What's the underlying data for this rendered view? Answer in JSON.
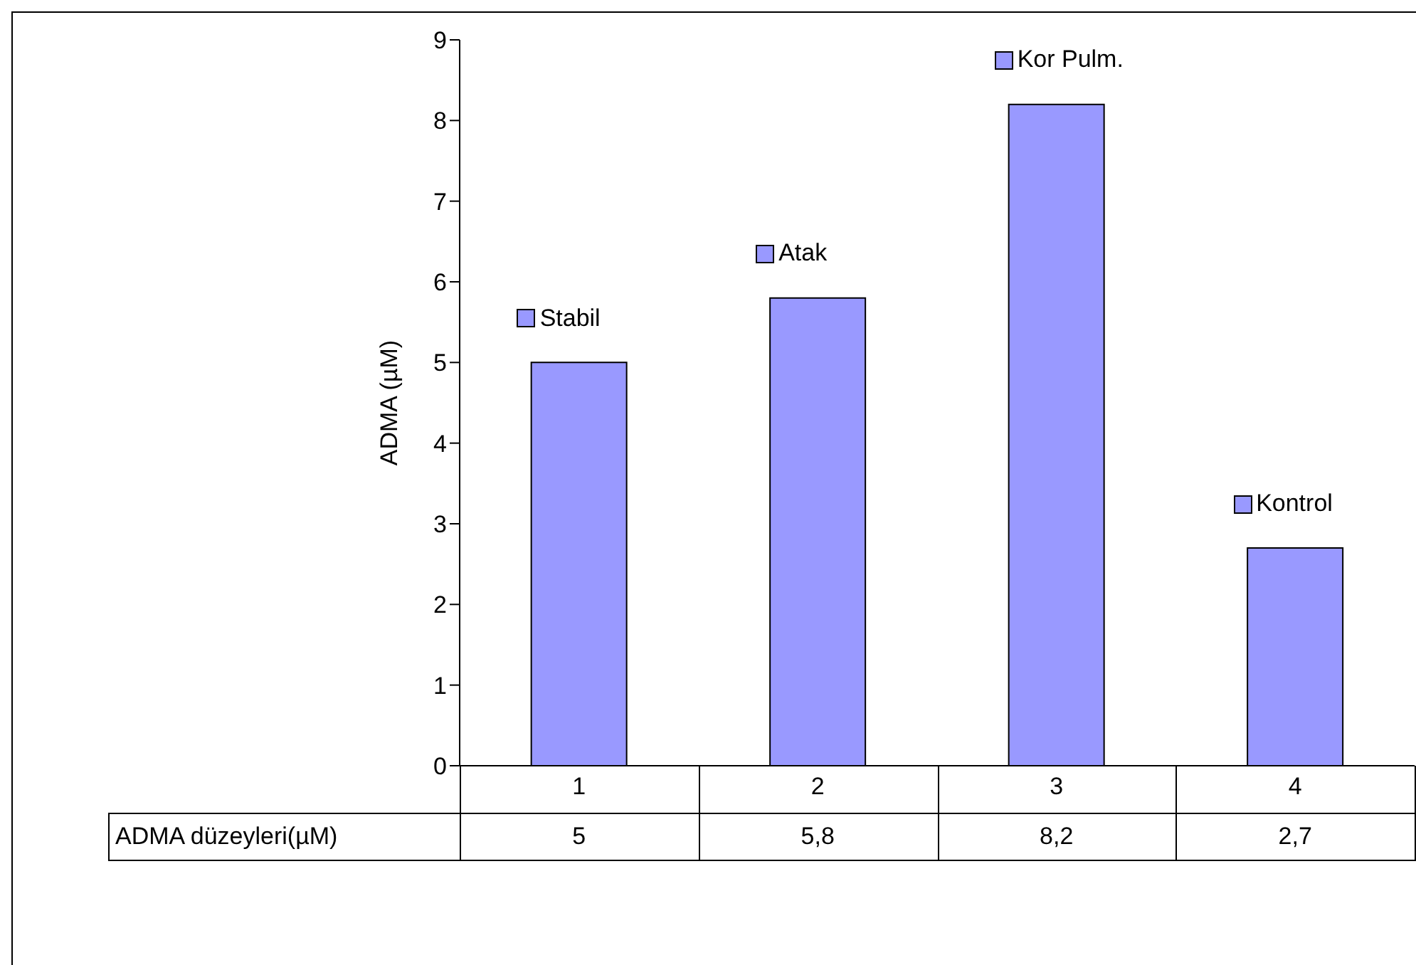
{
  "chart_data": {
    "type": "bar",
    "ylabel": "ADMA (µM)",
    "categories": [
      "1",
      "2",
      "3",
      "4"
    ],
    "series": [
      {
        "name": "ADMA düzeyleri(µM)",
        "color": "#9999ff",
        "values": [
          5,
          5.8,
          8.2,
          2.7
        ],
        "value_labels": [
          "5",
          "5,8",
          "8,2",
          "2,7"
        ]
      }
    ],
    "ylim": [
      0,
      9
    ],
    "yticks": [
      0,
      1,
      2,
      3,
      4,
      5,
      6,
      7,
      8,
      9
    ],
    "grid": false,
    "legend": false,
    "annotations": [
      {
        "text": "Stabil",
        "x": "1",
        "y": 5
      },
      {
        "text": "Atak",
        "x": "2",
        "y": 5.8
      },
      {
        "text": "Kor Pulm.",
        "x": "3",
        "y": 8.2
      },
      {
        "text": "Kontrol",
        "x": "4",
        "y": 2.7
      }
    ]
  }
}
